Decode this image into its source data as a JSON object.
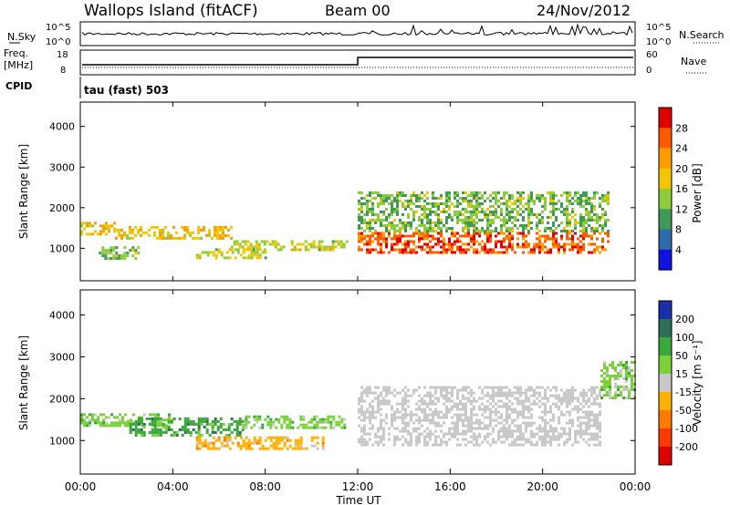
{
  "header": {
    "station": "Wallops Island (fitACF)",
    "beam": "Beam 00",
    "date": "24/Nov/2012"
  },
  "top_panels": {
    "nsky_label": "N.Sky",
    "nsearch_label": "N.Search",
    "noise_ticks": [
      "10^5",
      "10^0"
    ],
    "freq_label_1": "Freq.",
    "freq_label_2": "[MHz]",
    "freq_ticks": [
      "18",
      "8"
    ],
    "nave_label": "Nave",
    "nave_ticks": [
      "60",
      "0"
    ],
    "cpid_label": "CPID",
    "cpid_value": "tau (fast) 503"
  },
  "colorbars": {
    "power": {
      "label": "Power [dB]",
      "ticks": [
        "28",
        "24",
        "20",
        "16",
        "12",
        "8",
        "4"
      ],
      "colors": [
        "#e00000",
        "#ff5a00",
        "#ff9d00",
        "#f3c600",
        "#8fcc3a",
        "#3e9a58",
        "#2b6ca8",
        "#1212e0"
      ]
    },
    "velocity": {
      "label": "Velocity [m s⁻¹]",
      "ticks": [
        "200",
        "100",
        "50",
        "15",
        "-15",
        "-50",
        "-100",
        "-200"
      ],
      "colors": [
        "#1b2fa8",
        "#2e6f5a",
        "#3aa83a",
        "#7ad13a",
        "#c8c8c8",
        "#ffb000",
        "#ff7a00",
        "#ff3a00",
        "#e00000"
      ]
    }
  },
  "chart_data": [
    {
      "type": "heatmap",
      "name_hint": "power",
      "ylabel": "Slant Range [km]",
      "yticks": [
        "4000",
        "3000",
        "2000",
        "1000"
      ],
      "ylim": [
        200,
        4600
      ],
      "xlim": [
        0,
        24
      ],
      "bands": [
        {
          "t0": 0.0,
          "t1": 1.5,
          "r0": 1350,
          "r1": 1650,
          "level": 20
        },
        {
          "t0": 0.8,
          "t1": 2.5,
          "r0": 750,
          "r1": 1050,
          "level": 12
        },
        {
          "t0": 1.5,
          "t1": 6.5,
          "r0": 1250,
          "r1": 1550,
          "level": 20
        },
        {
          "t0": 5.0,
          "t1": 8.0,
          "r0": 750,
          "r1": 1000,
          "level": 16
        },
        {
          "t0": 6.5,
          "t1": 11.5,
          "r0": 950,
          "r1": 1200,
          "level": 16
        },
        {
          "t0": 12.0,
          "t1": 22.8,
          "r0": 900,
          "r1": 1400,
          "level": 28
        },
        {
          "t0": 12.0,
          "t1": 22.8,
          "r0": 1400,
          "r1": 2400,
          "level": 12
        }
      ]
    },
    {
      "type": "heatmap",
      "name_hint": "velocity",
      "ylabel": "Slant Range [km]",
      "yticks": [
        "4000",
        "3000",
        "2000",
        "1000"
      ],
      "ylim": [
        200,
        4600
      ],
      "xlim": [
        0,
        24
      ],
      "bands": [
        {
          "t0": 0.0,
          "t1": 4.0,
          "r0": 1350,
          "r1": 1650,
          "level": 15
        },
        {
          "t0": 2.0,
          "t1": 7.0,
          "r0": 1100,
          "r1": 1550,
          "level": 50
        },
        {
          "t0": 5.0,
          "t1": 10.5,
          "r0": 800,
          "r1": 1100,
          "level": -50
        },
        {
          "t0": 7.0,
          "t1": 11.5,
          "r0": 1300,
          "r1": 1600,
          "level": 15
        },
        {
          "t0": 12.0,
          "t1": 22.5,
          "r0": 900,
          "r1": 2300,
          "level": -15
        },
        {
          "t0": 22.5,
          "t1": 24.0,
          "r0": 2000,
          "r1": 2900,
          "level": 15
        }
      ]
    }
  ],
  "xaxis": {
    "label": "Time UT",
    "ticks": [
      "00:00",
      "04:00",
      "08:00",
      "12:00",
      "16:00",
      "20:00",
      "00:00"
    ]
  }
}
